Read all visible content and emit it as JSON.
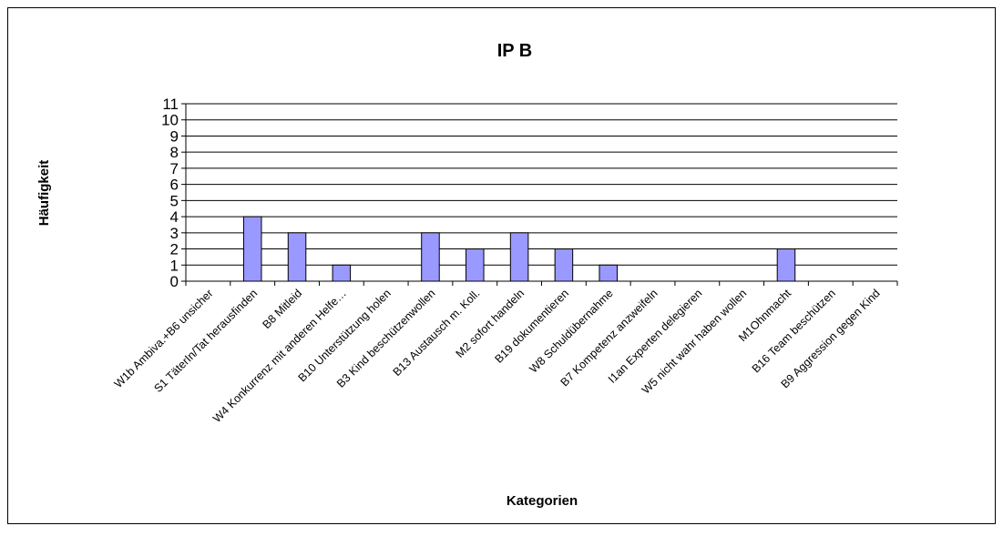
{
  "chart_data": {
    "type": "bar",
    "title": "IP B",
    "x_label": "Kategorien",
    "y_label": "Häufigkeit",
    "categories": [
      "W1b Ambiva.+B6 unsicher",
      "S1 TäterIn/Tat herausfinden",
      "B8 Mitleid",
      "W4 Konkurrenz mit anderen Helfe…",
      "B10 Unterstützung holen",
      "B3 Kind beschützenwollen",
      "B13 Austausch m. Koll.",
      "M2  sofort handeln",
      "B19 dokumentieren",
      "W8 Schuldübernahme",
      "B7 Kompetenz anzweifeln",
      "I1an Experten delegieren",
      "W5 nicht wahr haben wollen",
      "M1Ohnmacht",
      "B16 Team beschützen",
      "B9 Aggression gegen Kind"
    ],
    "values": [
      0,
      4,
      3,
      1,
      0,
      3,
      2,
      3,
      2,
      1,
      0,
      0,
      0,
      2,
      0,
      0
    ],
    "color": "#9999ff",
    "ylim": [
      0,
      11
    ],
    "yticks": [
      0,
      1,
      2,
      3,
      4,
      5,
      6,
      7,
      8,
      9,
      10,
      11
    ],
    "grid": true
  }
}
